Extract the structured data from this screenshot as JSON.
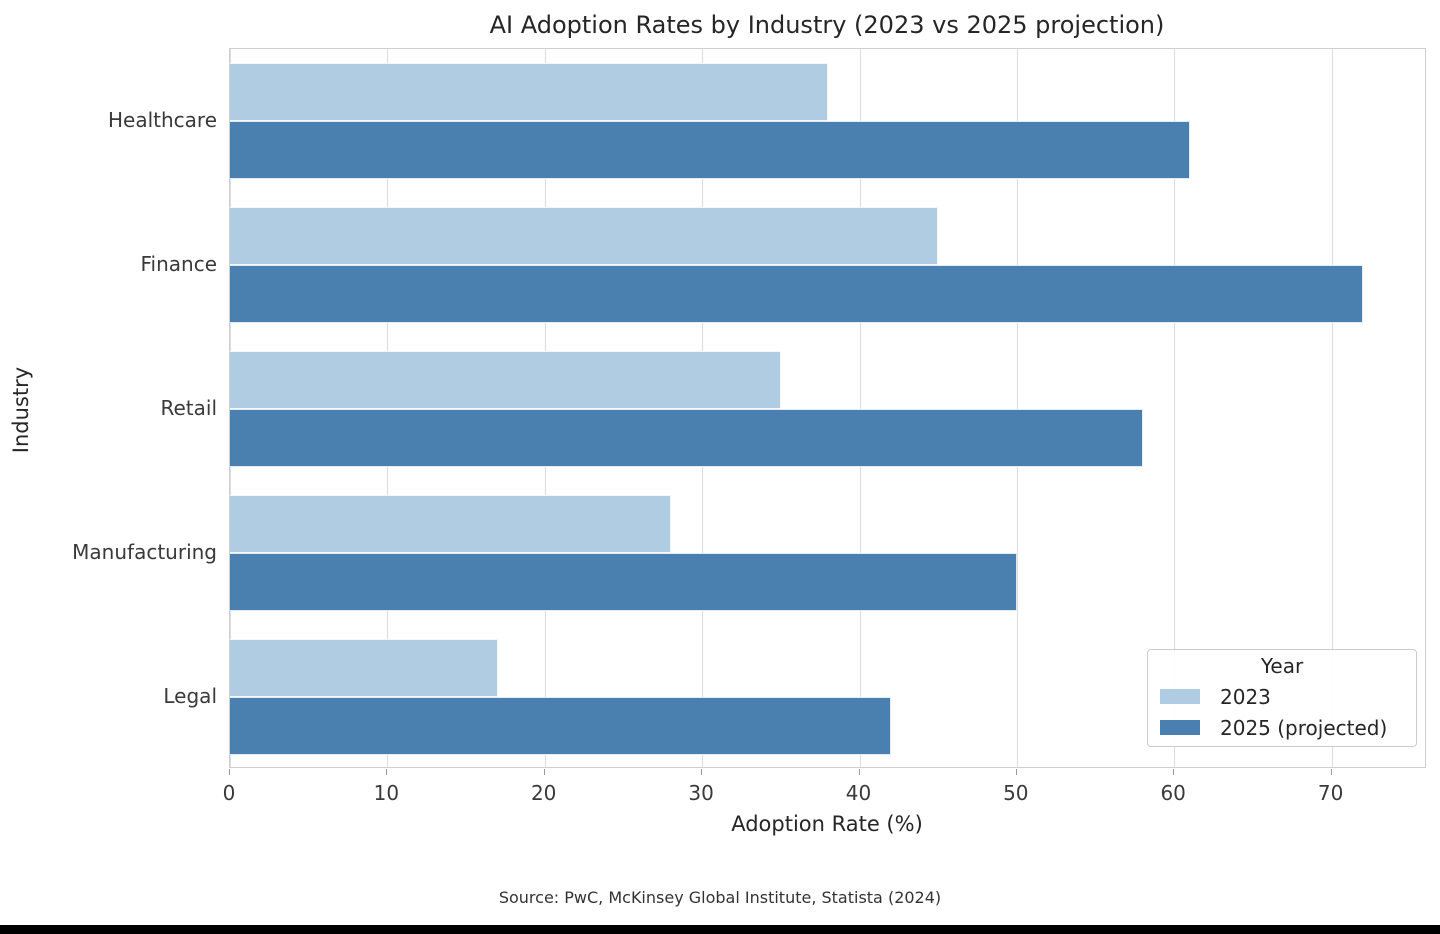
{
  "figure": {
    "source_note": "Source: PwC, McKinsey Global Institute, Statista (2024)"
  },
  "chart_data": {
    "type": "bar",
    "orientation": "horizontal",
    "title": "AI Adoption Rates by Industry (2023 vs 2025 projection)",
    "xlabel": "Adoption Rate (%)",
    "ylabel": "Industry",
    "categories": [
      "Healthcare",
      "Finance",
      "Retail",
      "Manufacturing",
      "Legal"
    ],
    "series": [
      {
        "name": "2023",
        "color": "#afcce2",
        "values": [
          38,
          45,
          35,
          28,
          17
        ]
      },
      {
        "name": "2025 (projected)",
        "color": "#4a80af",
        "values": [
          61,
          72,
          58,
          50,
          42
        ]
      }
    ],
    "xticks": [
      0,
      10,
      20,
      30,
      40,
      50,
      60,
      70
    ],
    "xlim": [
      0,
      76
    ],
    "grid": true,
    "gridline_color": "#dcdcdc",
    "legend": {
      "title": "Year",
      "position": "lower right"
    }
  }
}
